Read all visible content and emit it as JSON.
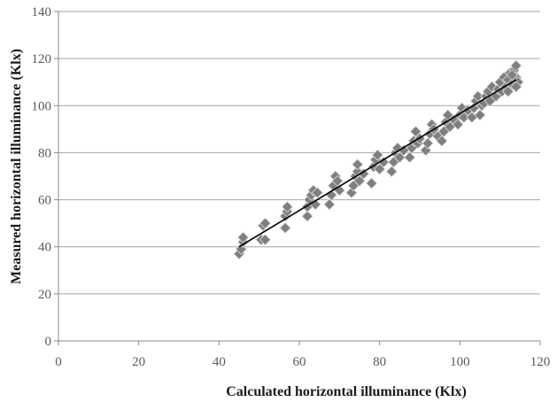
{
  "chart_data": {
    "type": "scatter",
    "xlabel": "Calculated horizontal illuminance (Klx)",
    "ylabel": "Measured horizontal illuminance (Klx)",
    "xlim": [
      0,
      120
    ],
    "ylim": [
      0,
      140
    ],
    "xticks": [
      0,
      20,
      40,
      60,
      80,
      100,
      120
    ],
    "yticks": [
      0,
      20,
      40,
      60,
      80,
      100,
      120,
      140
    ],
    "grid": "horizontal",
    "legend": "none",
    "marker": "diamond",
    "colors": {
      "marker": "#7f7f7f",
      "trendline": "#000000",
      "grid": "#a6a6a6"
    },
    "trendline": {
      "x": [
        45,
        114
      ],
      "y": [
        40,
        111
      ]
    },
    "series": [
      {
        "points": [
          [
            45,
            37
          ],
          [
            45.5,
            39
          ],
          [
            46,
            42
          ],
          [
            46,
            44
          ],
          [
            50.5,
            43
          ],
          [
            51,
            49
          ],
          [
            51.5,
            50
          ],
          [
            51.5,
            43
          ],
          [
            56.5,
            48
          ],
          [
            56.5,
            53
          ],
          [
            57,
            55
          ],
          [
            57,
            57
          ],
          [
            62,
            53
          ],
          [
            62,
            57
          ],
          [
            62.5,
            60
          ],
          [
            63,
            62
          ],
          [
            63.5,
            64
          ],
          [
            64,
            58
          ],
          [
            64.5,
            63
          ],
          [
            67.5,
            58
          ],
          [
            68,
            62
          ],
          [
            68.5,
            66
          ],
          [
            69,
            70
          ],
          [
            69.5,
            68
          ],
          [
            70,
            64
          ],
          [
            73,
            63
          ],
          [
            73.5,
            66
          ],
          [
            74,
            70
          ],
          [
            74.5,
            72
          ],
          [
            74.5,
            75
          ],
          [
            75,
            68
          ],
          [
            76,
            71
          ],
          [
            78,
            67
          ],
          [
            78.5,
            74
          ],
          [
            79,
            77
          ],
          [
            79.5,
            79
          ],
          [
            80,
            73
          ],
          [
            81,
            76
          ],
          [
            83,
            72
          ],
          [
            83.5,
            76
          ],
          [
            84,
            80
          ],
          [
            84.5,
            82
          ],
          [
            85,
            78
          ],
          [
            86,
            81
          ],
          [
            87.5,
            78
          ],
          [
            88,
            82
          ],
          [
            88.5,
            85
          ],
          [
            89,
            89
          ],
          [
            89.5,
            84
          ],
          [
            90,
            86
          ],
          [
            91.5,
            81
          ],
          [
            92,
            84
          ],
          [
            92.5,
            88
          ],
          [
            93,
            92
          ],
          [
            93.5,
            90
          ],
          [
            94.5,
            87
          ],
          [
            95.5,
            85
          ],
          [
            96,
            89
          ],
          [
            96.5,
            93
          ],
          [
            97,
            96
          ],
          [
            97.5,
            91
          ],
          [
            98.5,
            94
          ],
          [
            99.5,
            92
          ],
          [
            100,
            96
          ],
          [
            100.5,
            99
          ],
          [
            101,
            95
          ],
          [
            102,
            98
          ],
          [
            103,
            95
          ],
          [
            103.5,
            99
          ],
          [
            104,
            102
          ],
          [
            104.5,
            104
          ],
          [
            105,
            96
          ],
          [
            105.5,
            100
          ],
          [
            106,
            101
          ],
          [
            106.5,
            104
          ],
          [
            107,
            106
          ],
          [
            107.5,
            102
          ],
          [
            108,
            108
          ],
          [
            109,
            104
          ],
          [
            109.5,
            107
          ],
          [
            110,
            110
          ],
          [
            110.5,
            106
          ],
          [
            111,
            112
          ],
          [
            111.5,
            108
          ],
          [
            112,
            111
          ],
          [
            112.5,
            114
          ],
          [
            113,
            109
          ],
          [
            113.5,
            115
          ],
          [
            114,
            117
          ],
          [
            114,
            112
          ],
          [
            114.5,
            110
          ],
          [
            114,
            108
          ],
          [
            113,
            113
          ],
          [
            112,
            106
          ]
        ]
      }
    ]
  }
}
